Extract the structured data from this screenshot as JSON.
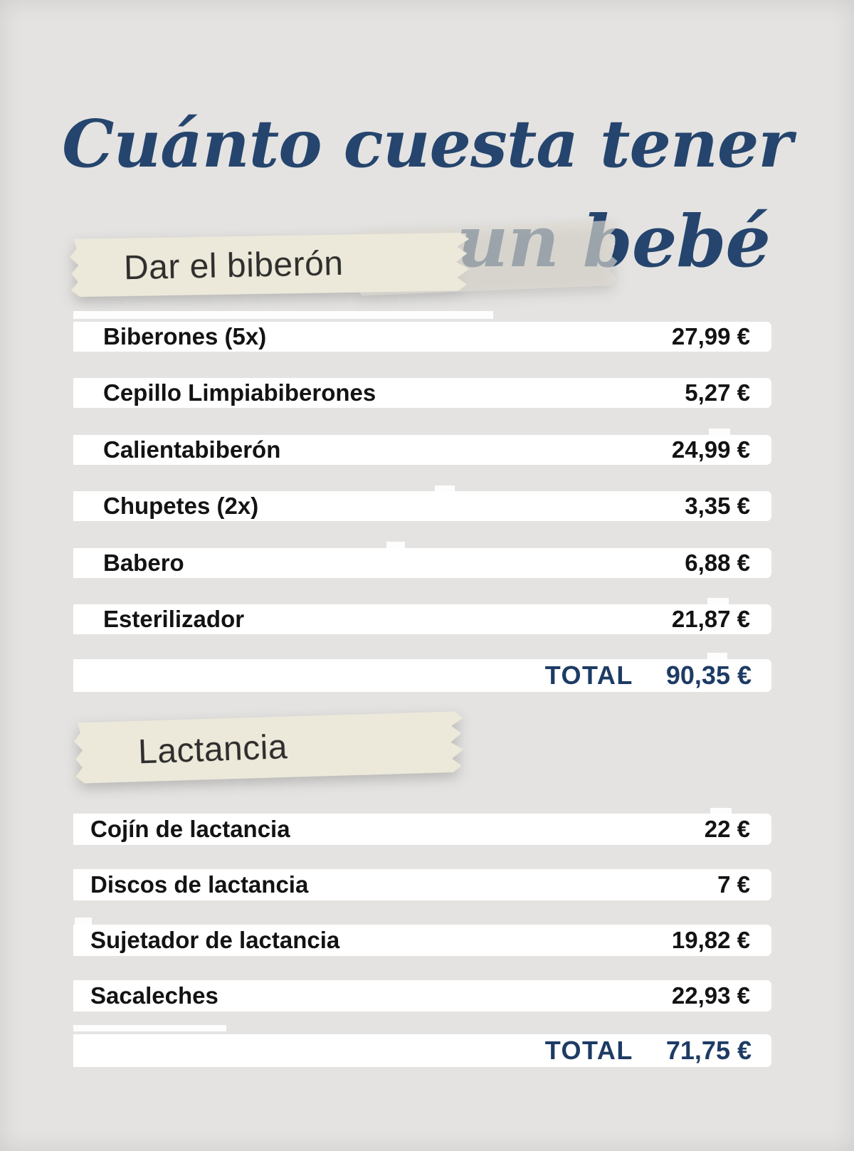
{
  "title": {
    "line1": "Cuánto cuesta tener",
    "line2": "un bebé"
  },
  "colors": {
    "background": "#e4e3e1",
    "title_blue": "#25456e",
    "total_blue": "#1d3b64",
    "row_background": "#ffffff",
    "row_text": "#131313",
    "tape_cream": "#ece9db"
  },
  "sections": [
    {
      "label": "Dar el biberón",
      "items": [
        {
          "name": "Biberones (5x)",
          "price": "27,99 €"
        },
        {
          "name": "Cepillo Limpiabiberones",
          "price": "5,27 €"
        },
        {
          "name": "Calientabiberón",
          "price": "24,99 €"
        },
        {
          "name": "Chupetes (2x)",
          "price": "3,35 €"
        },
        {
          "name": "Babero",
          "price": "6,88 €"
        },
        {
          "name": "Esterilizador",
          "price": "21,87 €"
        }
      ],
      "total_label": "TOTAL",
      "total_price": "90,35 €"
    },
    {
      "label": "Lactancia",
      "items": [
        {
          "name": "Cojín de lactancia",
          "price": "22 €"
        },
        {
          "name": "Discos de lactancia",
          "price": "7 €"
        },
        {
          "name": "Sujetador de lactancia",
          "price": "19,82 €"
        },
        {
          "name": "Sacaleches",
          "price": "22,93 €"
        }
      ],
      "total_label": "TOTAL",
      "total_price": "71,75 €"
    }
  ]
}
